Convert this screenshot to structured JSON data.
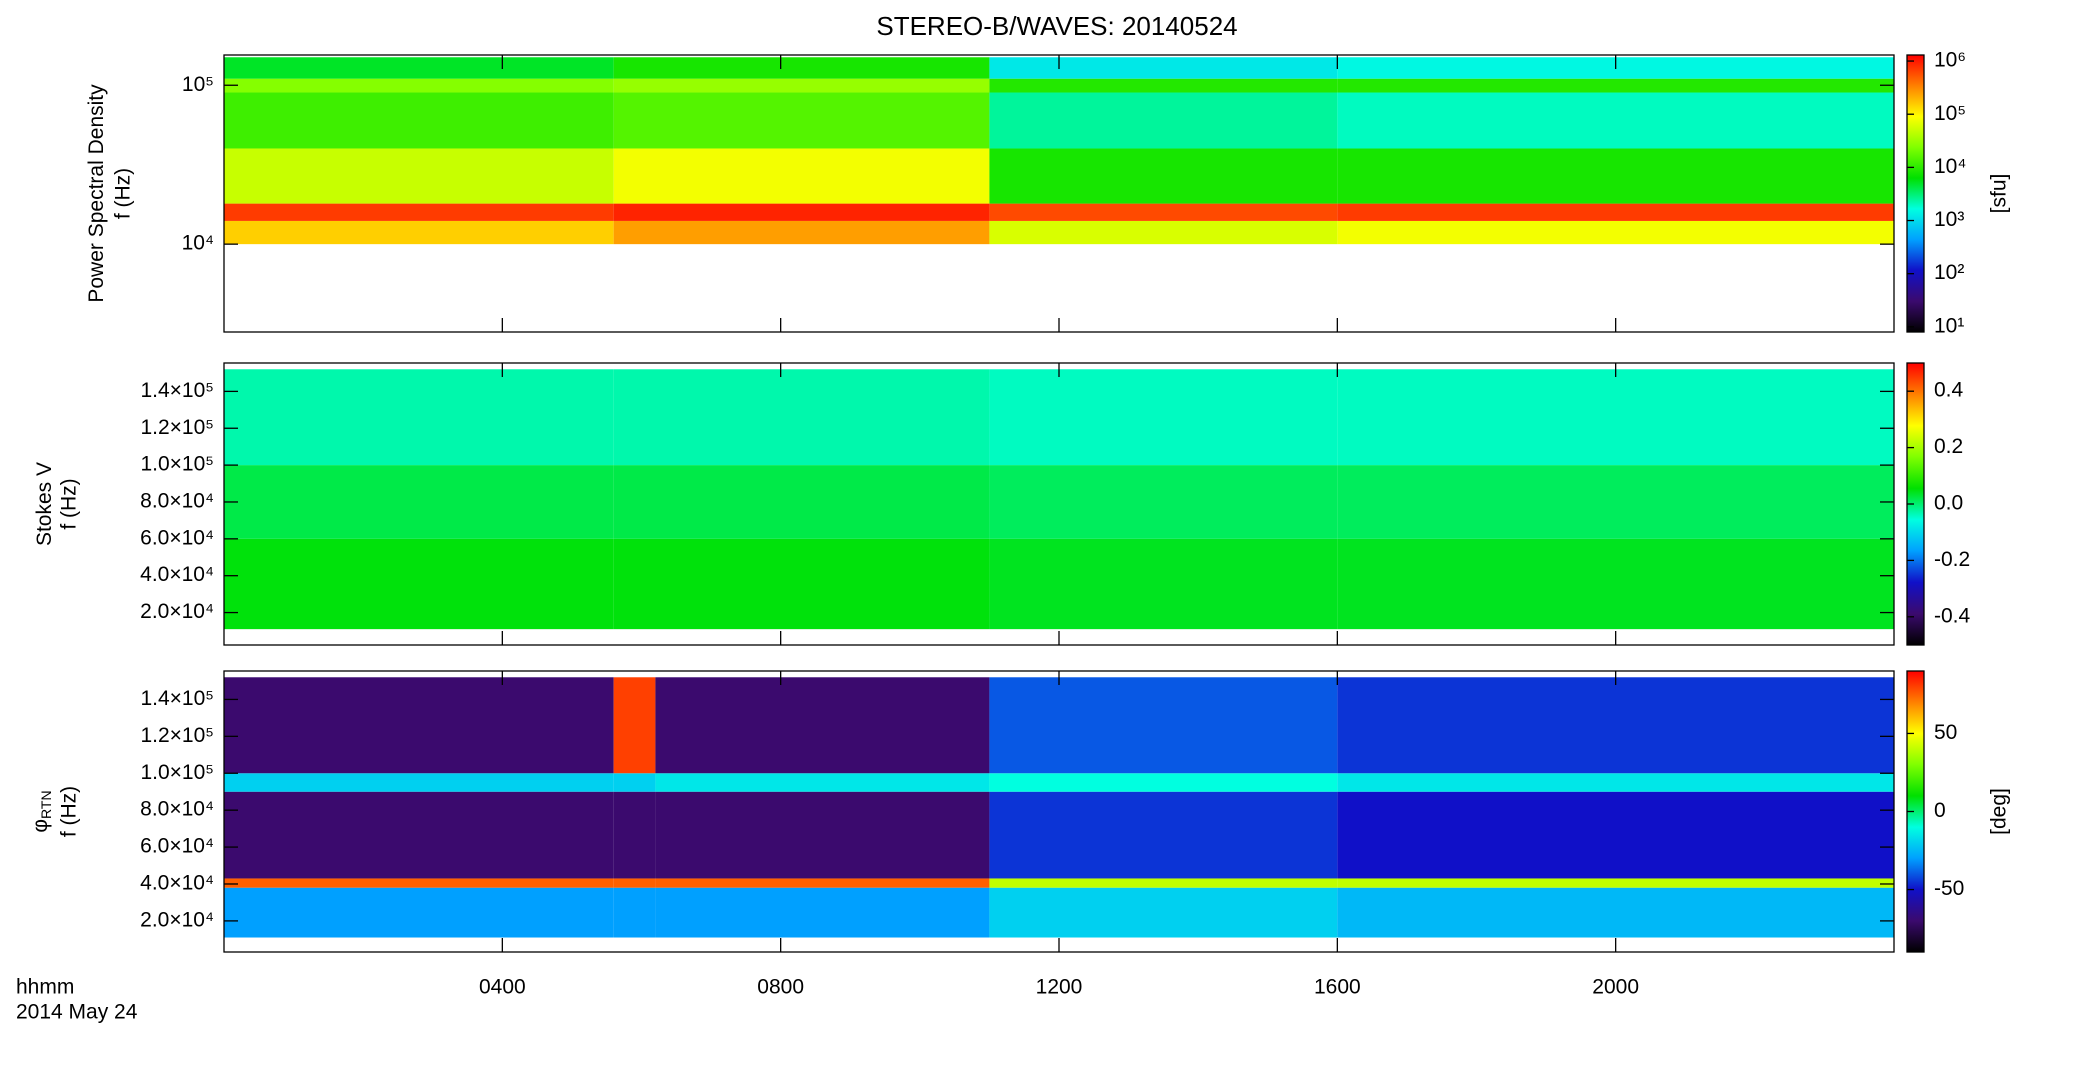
{
  "chart_data": [
    {
      "type": "heatmap",
      "title": "STEREO-B/WAVES: 20140524",
      "ylabel": "Power Spectral Density",
      "ylabel2": "f (Hz)",
      "ylog": true,
      "ylim": [
        2800,
        155000
      ],
      "yticks": [
        {
          "value": 10000,
          "label": "10⁴"
        },
        {
          "value": 100000,
          "label": "10⁵"
        }
      ],
      "xlim": [
        0,
        24
      ],
      "x_edges": [
        0,
        5.6,
        11,
        16,
        24
      ],
      "y_edges": [
        10000,
        14000,
        18000,
        40000,
        90000,
        110000,
        150000
      ],
      "z": [
        [
          150000,
          250000,
          60000,
          80000
        ],
        [
          700000,
          900000,
          600000,
          700000
        ],
        [
          50000,
          80000,
          8000,
          8000
        ],
        [
          12000,
          15000,
          2500,
          2000
        ],
        [
          25000,
          30000,
          9000,
          9000
        ],
        [
          5000,
          8000,
          1200,
          1500
        ]
      ],
      "clog": true,
      "clim": [
        8,
        1300000
      ],
      "cticks": [
        {
          "value": 10,
          "label": "10¹"
        },
        {
          "value": 100,
          "label": "10²"
        },
        {
          "value": 1000,
          "label": "10³"
        },
        {
          "value": 10000,
          "label": "10⁴"
        },
        {
          "value": 100000,
          "label": "10⁵"
        },
        {
          "value": 1000000,
          "label": "10⁶"
        }
      ],
      "clabel": "[sfu]",
      "colormap": [
        "#000000",
        "#3b0a6e",
        "#1010c8",
        "#00a0ff",
        "#00ffe0",
        "#00e000",
        "#80ff00",
        "#ffff00",
        "#ff8000",
        "#ff0000"
      ]
    },
    {
      "type": "heatmap",
      "ylabel": "Stokes V",
      "ylabel2": "f (Hz)",
      "ylog": false,
      "ylim": [
        2400,
        155400
      ],
      "yticks": [
        {
          "value": 20000,
          "label": "2.0×10⁴"
        },
        {
          "value": 40000,
          "label": "4.0×10⁴"
        },
        {
          "value": 60000,
          "label": "6.0×10⁴"
        },
        {
          "value": 80000,
          "label": "8.0×10⁴"
        },
        {
          "value": 100000,
          "label": "1.0×10⁵"
        },
        {
          "value": 120000,
          "label": "1.2×10⁵"
        },
        {
          "value": 140000,
          "label": "1.4×10⁵"
        }
      ],
      "xlim": [
        0,
        24
      ],
      "x_edges": [
        0,
        5.6,
        11,
        16,
        24
      ],
      "y_edges": [
        11000,
        60000,
        100000,
        152000
      ],
      "z": [
        [
          0.05,
          0.05,
          0.04,
          0.04
        ],
        [
          0.02,
          0.02,
          0.01,
          0.01
        ],
        [
          -0.03,
          -0.03,
          -0.04,
          -0.04
        ]
      ],
      "clog": false,
      "clim": [
        -0.5,
        0.5
      ],
      "cticks": [
        -0.4,
        -0.2,
        {
          "value": 0,
          "label": "0.0"
        },
        0.2,
        0.4
      ],
      "colormap": [
        "#000000",
        "#3b0a6e",
        "#1010c8",
        "#00a0ff",
        "#00ffe0",
        "#00e000",
        "#80ff00",
        "#ffff00",
        "#ff8000",
        "#ff0000"
      ]
    },
    {
      "type": "heatmap",
      "ylabel": "φ",
      "ylabel_sub": "RTN",
      "ylabel2": "f (Hz)",
      "ylog": false,
      "ylim": [
        3150,
        155400
      ],
      "yticks": [
        {
          "value": 20000,
          "label": "2.0×10⁴"
        },
        {
          "value": 40000,
          "label": "4.0×10⁴"
        },
        {
          "value": 60000,
          "label": "6.0×10⁴"
        },
        {
          "value": 80000,
          "label": "8.0×10⁴"
        },
        {
          "value": 100000,
          "label": "1.0×10⁵"
        },
        {
          "value": 120000,
          "label": "1.2×10⁵"
        },
        {
          "value": 140000,
          "label": "1.4×10⁵"
        }
      ],
      "xlim": [
        0,
        24
      ],
      "x_edges": [
        0,
        5.6,
        6.2,
        11,
        16,
        24
      ],
      "y_edges": [
        11000,
        38000,
        43000,
        90000,
        100000,
        152000
      ],
      "z": [
        [
          -30,
          -30,
          -30,
          -20,
          -25
        ],
        [
          75,
          75,
          75,
          40,
          40
        ],
        [
          -70,
          -70,
          -70,
          -45,
          -50
        ],
        [
          -20,
          -20,
          -15,
          -10,
          -15
        ],
        [
          -70,
          80,
          -70,
          -40,
          -45
        ]
      ],
      "clog": false,
      "clim": [
        -90,
        90
      ],
      "cticks": [
        -50,
        0,
        50
      ],
      "clabel": "[deg]",
      "xticks": [
        {
          "value": 4,
          "label": "0400"
        },
        {
          "value": 8,
          "label": "0800"
        },
        {
          "value": 12,
          "label": "1200"
        },
        {
          "value": 16,
          "label": "1600"
        },
        {
          "value": 20,
          "label": "2000"
        }
      ],
      "xlabel": "hhmm",
      "date": "2014 May 24",
      "colormap": [
        "#000000",
        "#3b0a6e",
        "#1010c8",
        "#00a0ff",
        "#00ffe0",
        "#00e000",
        "#80ff00",
        "#ffff00",
        "#ff8000",
        "#ff0000"
      ]
    }
  ]
}
